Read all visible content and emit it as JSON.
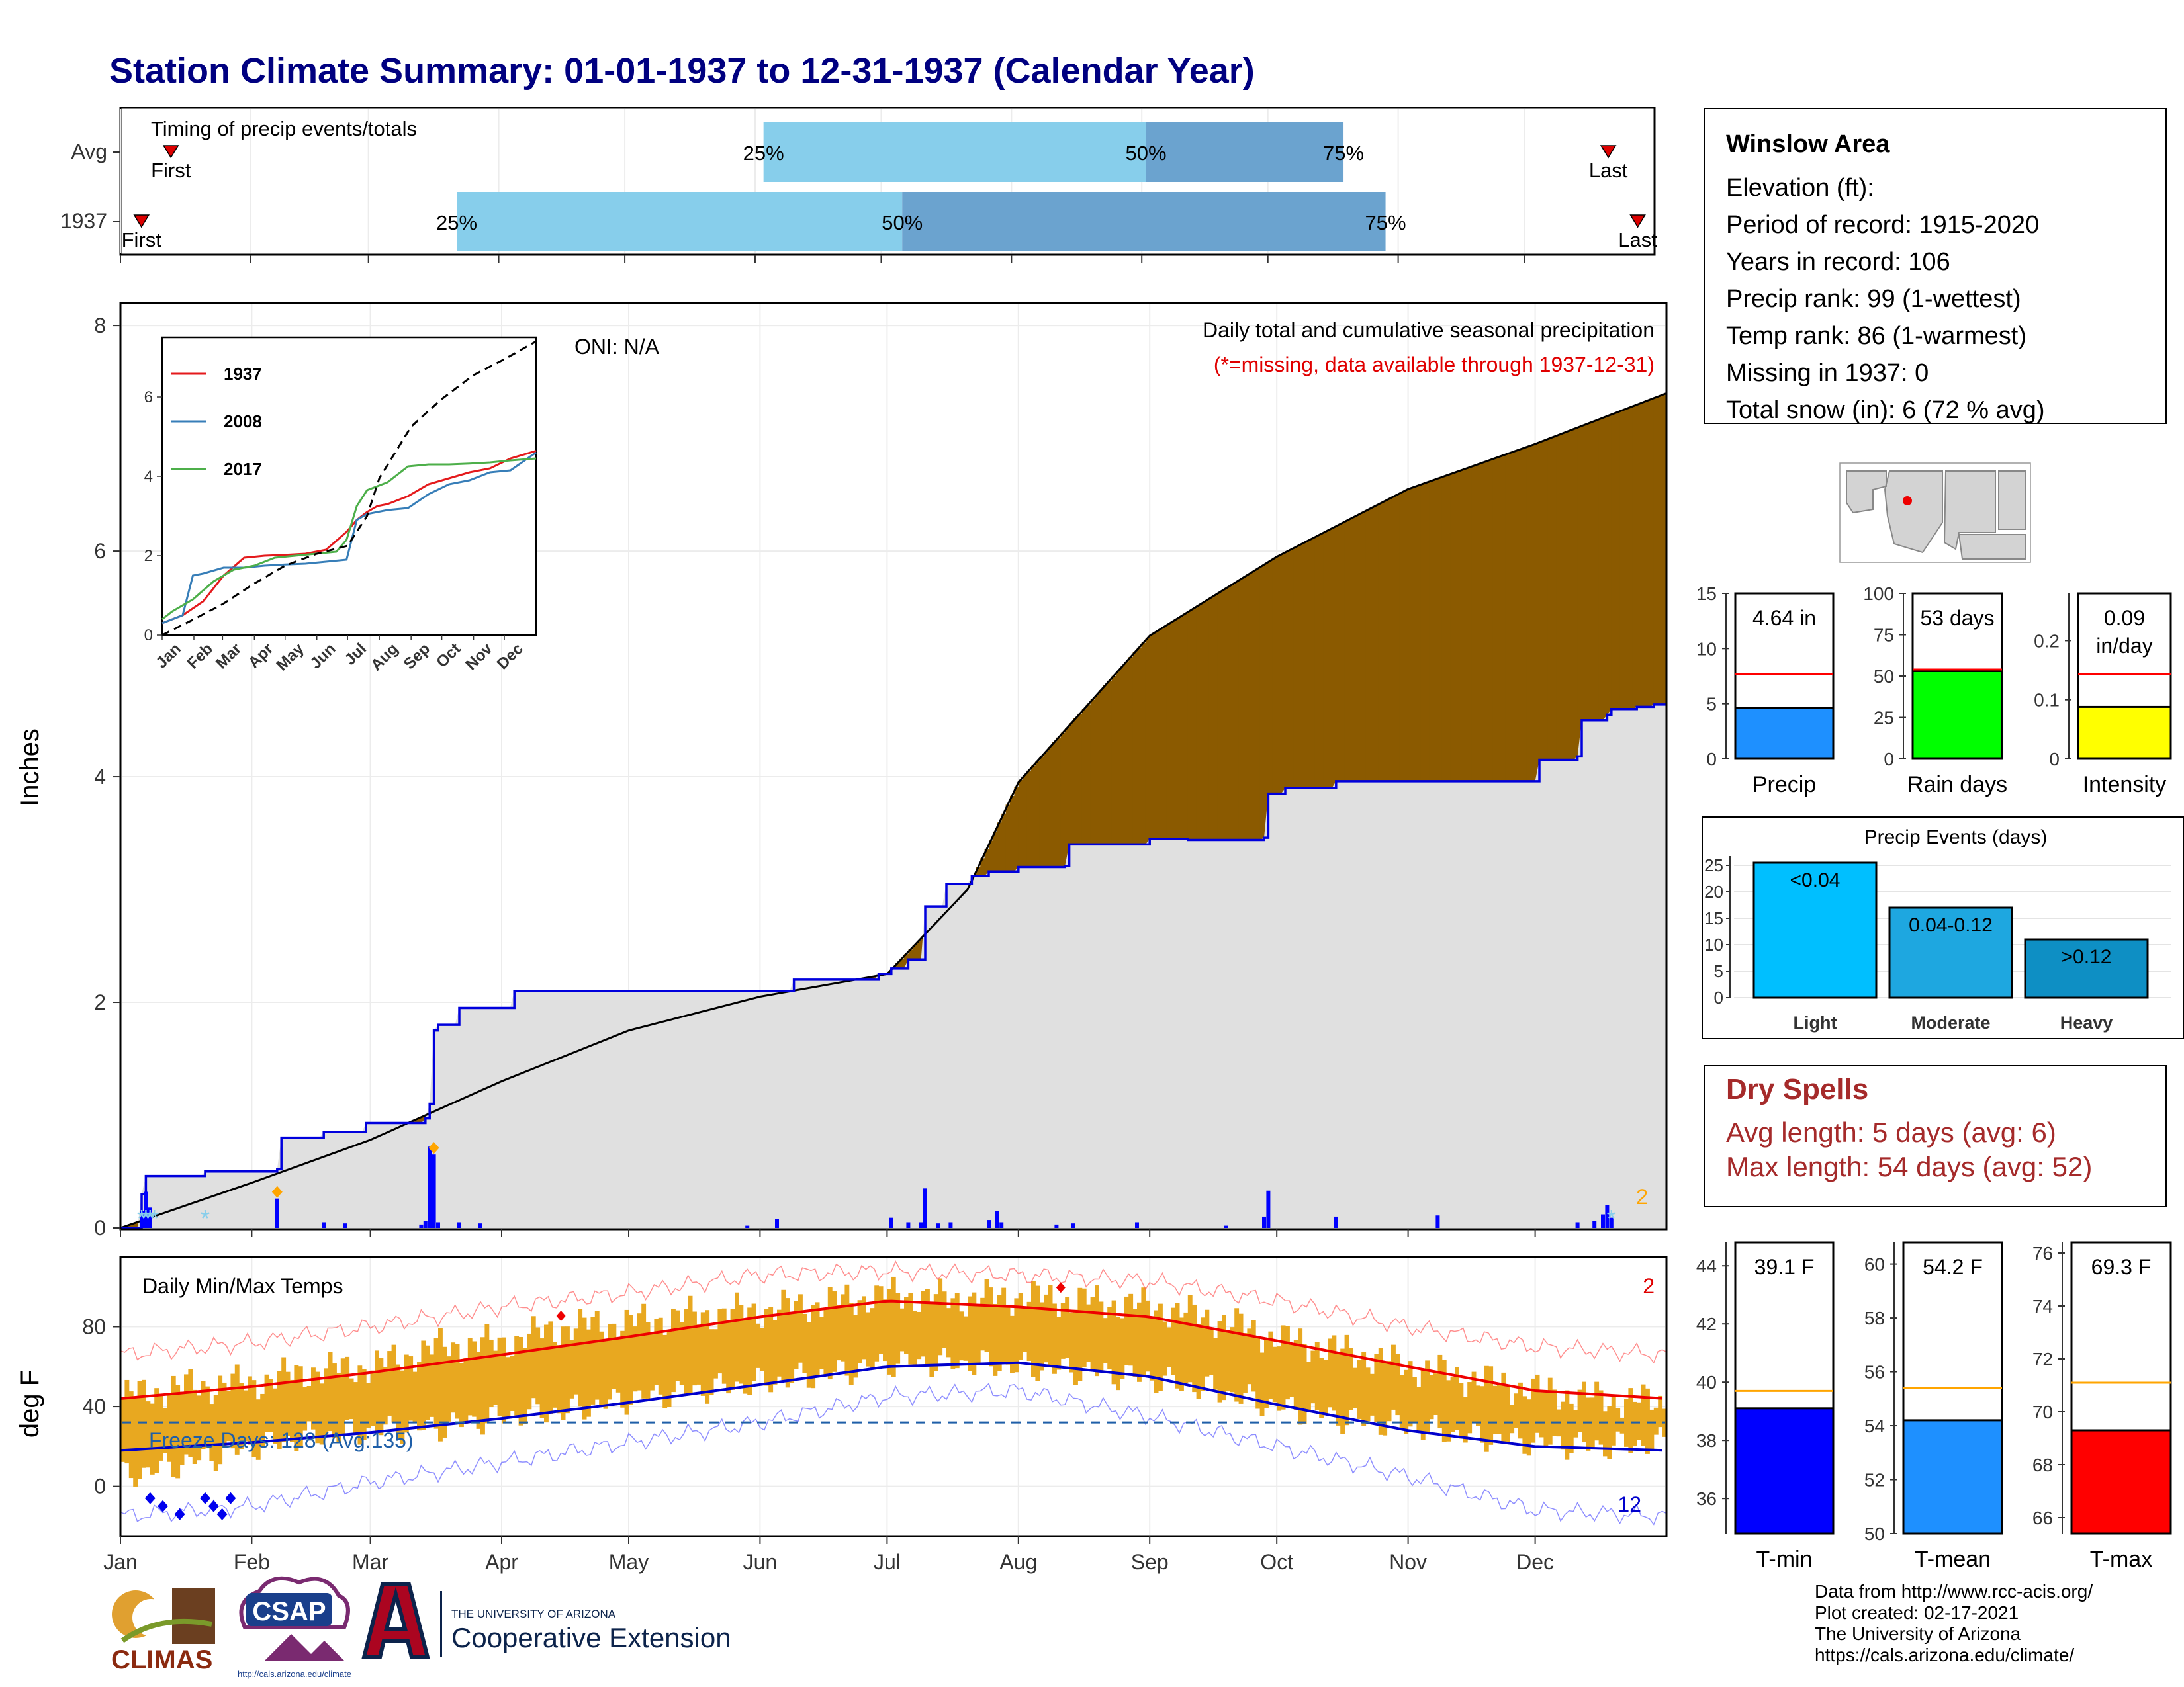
{
  "page_title": "Station Climate Summary: 01-01-1937 to 12-31-1937 (Calendar Year)",
  "timing": {
    "title": "Timing of precip events/totals",
    "rows": [
      {
        "label": "Avg",
        "first_day": 12,
        "p25_day": 153,
        "p50_day": 244,
        "p75_day": 291,
        "last_day": 354,
        "first_label": "First",
        "last_label": "Last"
      },
      {
        "label": "1937",
        "first_day": 5,
        "p25_day": 80,
        "p50_day": 186,
        "p75_day": 301,
        "last_day": 361,
        "first_label": "First",
        "last_label": "Last"
      }
    ],
    "pct_labels": [
      "25%",
      "50%",
      "75%"
    ],
    "colors": {
      "light": "#87ceeb",
      "dark": "#6ba3cf",
      "marker": "#dd0000"
    }
  },
  "chart_data": [
    {
      "type": "area",
      "name_text": "Daily total and cumulative seasonal precipitation",
      "subtitle": "(*=missing, data available through 1937-12-31)",
      "oni": "ONI: N/A",
      "ylabel": "Inches",
      "ylim": [
        0,
        8.2
      ],
      "yticks": [
        0,
        2,
        4,
        6,
        8
      ],
      "xlim_days": [
        0,
        365
      ],
      "month_labels": [
        "Jan",
        "Feb",
        "Mar",
        "Apr",
        "May",
        "Jun",
        "Jul",
        "Aug",
        "Sep",
        "Oct",
        "Nov",
        "Dec"
      ],
      "month_start_days": [
        0,
        31,
        59,
        90,
        120,
        151,
        181,
        212,
        243,
        273,
        304,
        334
      ],
      "avg_cumulative": {
        "days": [
          0,
          31,
          59,
          90,
          120,
          151,
          181,
          200,
          212,
          243,
          273,
          304,
          334,
          365
        ],
        "values": [
          0,
          0.4,
          0.78,
          1.3,
          1.75,
          2.05,
          2.25,
          3.0,
          3.95,
          5.25,
          5.95,
          6.55,
          6.95,
          7.4
        ]
      },
      "obs_cumulative": {
        "days": [
          0,
          5,
          6,
          20,
          37,
          38,
          48,
          58,
          72,
          73,
          74,
          75,
          80,
          93,
          148,
          159,
          179,
          182,
          186,
          190,
          195,
          201,
          205,
          212,
          223,
          224,
          243,
          252,
          270,
          271,
          275,
          287,
          335,
          344,
          345,
          351,
          352,
          358,
          362,
          365
        ],
        "values": [
          0,
          0.3,
          0.46,
          0.5,
          0.52,
          0.8,
          0.85,
          0.93,
          0.97,
          1.1,
          1.75,
          1.8,
          1.95,
          2.1,
          2.1,
          2.2,
          2.25,
          2.3,
          2.38,
          2.85,
          3.05,
          3.12,
          3.16,
          3.2,
          3.21,
          3.4,
          3.45,
          3.44,
          3.46,
          3.85,
          3.9,
          3.96,
          4.15,
          4.18,
          4.5,
          4.55,
          4.6,
          4.62,
          4.64,
          4.64
        ]
      },
      "daily_precip": {
        "days": [
          5,
          6,
          7,
          37,
          48,
          53,
          71,
          72,
          73,
          74,
          75,
          80,
          85,
          148,
          155,
          182,
          186,
          189,
          190,
          193,
          196,
          205,
          207,
          208,
          221,
          225,
          240,
          261,
          270,
          271,
          287,
          311,
          344,
          348,
          350,
          351,
          352
        ],
        "values": [
          0.15,
          0.32,
          0.18,
          0.26,
          0.05,
          0.04,
          0.03,
          0.06,
          0.72,
          0.65,
          0.05,
          0.05,
          0.04,
          0.02,
          0.08,
          0.09,
          0.05,
          0.05,
          0.35,
          0.04,
          0.05,
          0.07,
          0.15,
          0.05,
          0.03,
          0.04,
          0.05,
          0.02,
          0.1,
          0.33,
          0.1,
          0.11,
          0.05,
          0.06,
          0.12,
          0.2,
          0.09
        ]
      },
      "record_markers_days": [
        37,
        74
      ],
      "snow_markers_days": [
        5,
        6,
        7,
        8,
        20,
        352
      ],
      "corner_count": "2",
      "colors": {
        "surplus": "#008000",
        "deficit": "#8b5a00",
        "obs_line": "#0000dd",
        "fill": "#e0e0e0",
        "bars": "#0000ff",
        "record": "#ffa500",
        "snow": "#87ceeb"
      },
      "inset": {
        "type": "line",
        "ylim": [
          0,
          7.5
        ],
        "yticks": [
          0,
          2,
          4,
          6
        ],
        "series": [
          {
            "name": "1937",
            "color": "#e41a1c",
            "days": [
              0,
              20,
              40,
              60,
              80,
              100,
              120,
              140,
              160,
              180,
              190,
              200,
              210,
              220,
              240,
              260,
              280,
              300,
              320,
              340,
              365
            ],
            "values": [
              0.3,
              0.5,
              0.85,
              1.5,
              1.95,
              2.0,
              2.02,
              2.05,
              2.15,
              2.6,
              2.9,
              3.1,
              3.25,
              3.3,
              3.5,
              3.8,
              3.95,
              4.1,
              4.2,
              4.45,
              4.64
            ]
          },
          {
            "name": "2008",
            "color": "#377eb8",
            "days": [
              0,
              20,
              30,
              40,
              60,
              80,
              100,
              120,
              140,
              160,
              180,
              190,
              200,
              210,
              220,
              240,
              260,
              280,
              300,
              320,
              340,
              365
            ],
            "values": [
              0.3,
              0.5,
              1.5,
              1.55,
              1.7,
              1.7,
              1.75,
              1.78,
              1.8,
              1.85,
              1.9,
              2.9,
              3.05,
              3.1,
              3.15,
              3.2,
              3.55,
              3.8,
              3.9,
              4.1,
              4.15,
              4.6
            ]
          },
          {
            "name": "2017",
            "color": "#4daf4a",
            "days": [
              0,
              10,
              30,
              50,
              70,
              90,
              110,
              130,
              150,
              170,
              180,
              190,
              200,
              220,
              240,
              260,
              280,
              300,
              320,
              340,
              365
            ],
            "values": [
              0.4,
              0.6,
              0.9,
              1.35,
              1.65,
              1.75,
              1.95,
              2.0,
              2.05,
              2.1,
              2.4,
              3.25,
              3.65,
              3.85,
              4.25,
              4.3,
              4.3,
              4.32,
              4.35,
              4.4,
              4.45
            ]
          },
          {
            "name": "avg",
            "color": "#000000",
            "dashed": true,
            "days": [
              0,
              31,
              59,
              90,
              120,
              151,
              181,
              200,
              212,
              243,
              273,
              304,
              334,
              365
            ],
            "values": [
              0,
              0.4,
              0.78,
              1.3,
              1.75,
              2.05,
              2.25,
              3.0,
              3.95,
              5.25,
              5.95,
              6.55,
              6.95,
              7.4
            ]
          }
        ],
        "month_labels": [
          "Jan",
          "Feb",
          "Mar",
          "Apr",
          "May",
          "Jun",
          "Jul",
          "Aug",
          "Sep",
          "Oct",
          "Nov",
          "Dec"
        ]
      }
    },
    {
      "type": "bar",
      "name_text": "Daily Min/Max Temps",
      "ylabel": "deg F",
      "ylim": [
        -25,
        115
      ],
      "yticks": [
        0,
        40,
        80
      ],
      "freeze_line": 32,
      "freeze_text": "Freeze Days: 128 (Avg:135)",
      "count_top": "2",
      "count_bottom": "12",
      "month_labels": [
        "Jan",
        "Feb",
        "Mar",
        "Apr",
        "May",
        "Jun",
        "Jul",
        "Aug",
        "Sep",
        "Oct",
        "Nov",
        "Dec"
      ],
      "normal_max": {
        "days": [
          0,
          31,
          59,
          90,
          120,
          151,
          181,
          212,
          243,
          273,
          304,
          334,
          365
        ],
        "values": [
          44,
          50,
          57,
          66,
          75,
          85,
          93,
          90,
          85,
          73,
          60,
          48,
          44
        ]
      },
      "normal_min": {
        "days": [
          0,
          31,
          59,
          90,
          120,
          151,
          181,
          212,
          243,
          273,
          304,
          334,
          365
        ],
        "values": [
          18,
          22,
          27,
          34,
          42,
          51,
          60,
          62,
          55,
          41,
          28,
          20,
          18
        ]
      },
      "record_max": {
        "days": [
          0,
          31,
          59,
          90,
          120,
          151,
          181,
          212,
          243,
          273,
          304,
          334,
          365
        ],
        "values": [
          66,
          72,
          80,
          90,
          97,
          106,
          108,
          106,
          103,
          93,
          80,
          70,
          66
        ]
      },
      "record_min": {
        "days": [
          0,
          31,
          59,
          90,
          120,
          151,
          181,
          212,
          243,
          273,
          304,
          334,
          365
        ],
        "values": [
          -15,
          -10,
          2,
          12,
          22,
          32,
          45,
          48,
          35,
          20,
          5,
          -12,
          -15
        ]
      },
      "daily_band": {
        "days": [
          0,
          15,
          31,
          45,
          59,
          75,
          90,
          105,
          120,
          135,
          151,
          166,
          181,
          196,
          212,
          227,
          243,
          258,
          273,
          288,
          304,
          319,
          334,
          349,
          365
        ],
        "max": [
          45,
          50,
          52,
          58,
          60,
          70,
          72,
          80,
          82,
          86,
          88,
          92,
          96,
          94,
          95,
          93,
          90,
          84,
          74,
          68,
          60,
          54,
          48,
          44,
          42
        ],
        "min": [
          5,
          12,
          20,
          25,
          28,
          30,
          35,
          38,
          44,
          48,
          52,
          56,
          62,
          62,
          60,
          58,
          54,
          48,
          40,
          34,
          30,
          25,
          22,
          20,
          22
        ]
      },
      "record_high_days": [
        104,
        222
      ],
      "record_low_days": [
        7,
        10,
        14,
        20,
        22,
        24,
        26
      ],
      "colors": {
        "band": "#e8a820",
        "max_line": "#ee0000",
        "min_line": "#0000cc",
        "freeze": "#1f5fa8"
      }
    },
    {
      "type": "bar",
      "ylim": [
        0,
        15
      ],
      "yticks": [
        0,
        5,
        10,
        15
      ],
      "value": 4.64,
      "normal": 7.7,
      "value_label": "4.64 in",
      "xlabel": "Precip",
      "color": "#1e90ff"
    },
    {
      "type": "bar",
      "ylim": [
        0,
        100
      ],
      "yticks": [
        0,
        25,
        50,
        75,
        100
      ],
      "value": 53,
      "normal": 54,
      "value_label": "53 days",
      "xlabel": "Rain days",
      "color": "#00ff00"
    },
    {
      "type": "bar",
      "ylim": [
        0,
        0.28
      ],
      "yticks": [
        0.0,
        0.1,
        0.2
      ],
      "value": 0.088,
      "normal": 0.143,
      "value_label": "0.09",
      "value_label2": "in/day",
      "xlabel": "Intensity",
      "color": "#ffff00"
    },
    {
      "type": "bar",
      "title": "Precip Events (days)",
      "ylim": [
        0,
        26
      ],
      "yticks": [
        0,
        5,
        10,
        15,
        20,
        25
      ],
      "categories": [
        "Light",
        "Moderate",
        "Heavy"
      ],
      "values": [
        25.5,
        17,
        11
      ],
      "bar_labels": [
        "<0.04",
        "0.04-0.12",
        ">0.12"
      ],
      "colors": [
        "#00bfff",
        "#1ea7e0",
        "#0e8fc4"
      ]
    },
    {
      "type": "bar",
      "ylim": [
        34.8,
        44.8
      ],
      "yticks": [
        36,
        38,
        40,
        42,
        44
      ],
      "value": 39.1,
      "normal": 39.7,
      "value_label": "39.1 F",
      "xlabel": "T-min",
      "color": "#0000ff"
    },
    {
      "type": "bar",
      "ylim": [
        50,
        60.8
      ],
      "yticks": [
        50,
        52,
        54,
        56,
        58,
        60
      ],
      "value": 54.2,
      "normal": 55.4,
      "value_label": "54.2 F",
      "xlabel": "T-mean",
      "color": "#1e90ff"
    },
    {
      "type": "bar",
      "ylim": [
        65.4,
        76.4
      ],
      "yticks": [
        66,
        68,
        70,
        72,
        74,
        76
      ],
      "value": 69.3,
      "normal": 71.1,
      "value_label": "69.3 F",
      "xlabel": "T-max",
      "color": "#ff0000"
    }
  ],
  "station": {
    "name": "Winslow Area",
    "rows": [
      "Elevation (ft):",
      "Period of record: 1915-2020",
      "Years in record: 106",
      "Precip rank: 99 (1-wettest)",
      "Temp rank: 86 (1-warmest)",
      "Missing in 1937: 0",
      "Total snow (in): 6 (72 % avg)"
    ]
  },
  "dry_spells": {
    "title": "Dry Spells",
    "avg": "Avg length: 5 days (avg: 6)",
    "max": "Max length: 54 days (avg: 52)"
  },
  "footer": {
    "lines": [
      "Data from http://www.rcc-acis.org/",
      "Plot created: 02-17-2021",
      "The University of Arizona",
      "https://cals.arizona.edu/climate/"
    ],
    "logo_climas": "CLIMAS",
    "logo_csap": "CSAP",
    "logo_csap_url": "http://cals.arizona.edu/climate",
    "ua_small": "THE UNIVERSITY OF ARIZONA",
    "ua_big": "Cooperative Extension"
  }
}
